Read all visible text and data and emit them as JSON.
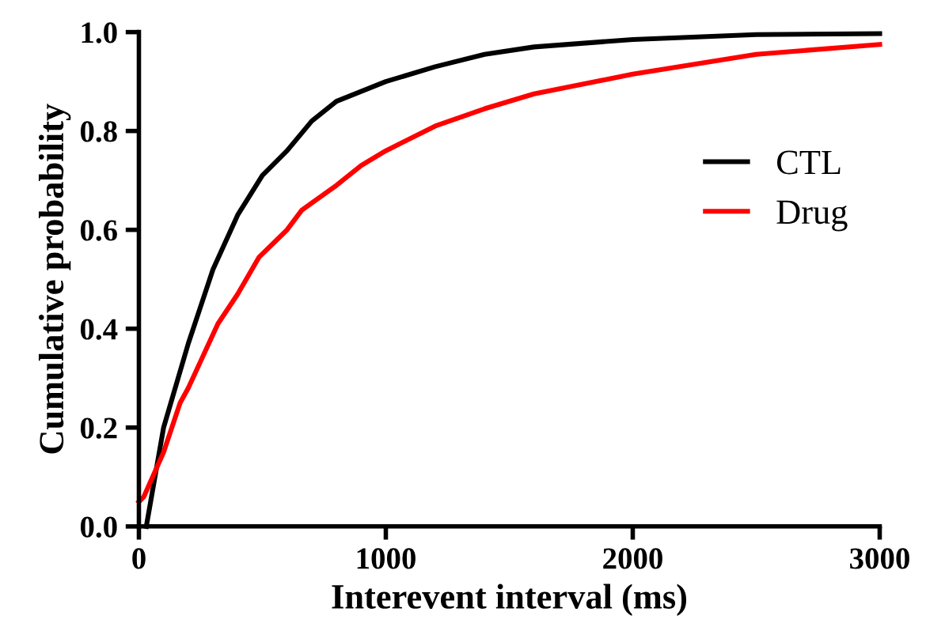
{
  "chart_data": {
    "type": "line",
    "xlabel": "Interevent interval (ms)",
    "ylabel": "Cumulative probability",
    "xlim": [
      0,
      3000
    ],
    "xticks": [
      0,
      1000,
      2000,
      3000
    ],
    "ylim": [
      0,
      1.0
    ],
    "yticks": [
      {
        "value": 0,
        "label": "0.0"
      },
      {
        "value": 0.2,
        "label": "0.2"
      },
      {
        "value": 0.4,
        "label": "0.4"
      },
      {
        "value": 0.6,
        "label": "0.6"
      },
      {
        "value": 0.8,
        "label": "0.8"
      },
      {
        "value": 1.0,
        "label": "1.0"
      }
    ],
    "legend": "right",
    "grid": false,
    "marker": "none",
    "line_style": "solid",
    "series": [
      {
        "name": "CTL",
        "color": "#000000",
        "x": [
          30,
          100,
          200,
          300,
          400,
          500,
          600,
          700,
          800,
          1000,
          1200,
          1400,
          1600,
          2000,
          2500,
          3000
        ],
        "values": [
          0,
          0.2,
          0.37,
          0.52,
          0.63,
          0.71,
          0.76,
          0.82,
          0.86,
          0.9,
          0.93,
          0.955,
          0.97,
          0.985,
          0.995,
          0.997
        ]
      },
      {
        "name": "Drug",
        "color": "#ff0000",
        "x": [
          0,
          20,
          100,
          167,
          200,
          320,
          400,
          487,
          600,
          660,
          800,
          900,
          1000,
          1200,
          1400,
          1600,
          2000,
          2500,
          3000
        ],
        "values": [
          0.05,
          0.06,
          0.15,
          0.25,
          0.28,
          0.41,
          0.47,
          0.545,
          0.6,
          0.64,
          0.69,
          0.73,
          0.76,
          0.81,
          0.845,
          0.875,
          0.915,
          0.955,
          0.975
        ]
      }
    ]
  }
}
